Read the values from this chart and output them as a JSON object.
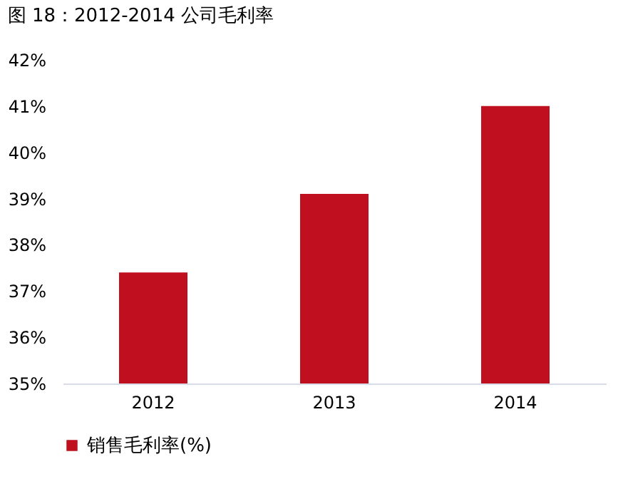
{
  "chart_data": {
    "type": "bar",
    "title": "图 18：2012-2014 公司毛利率",
    "categories": [
      "2012",
      "2013",
      "2014"
    ],
    "series": [
      {
        "name": "销售毛利率(%)",
        "color": "#c00f1e",
        "values": [
          37.4,
          39.1,
          41.0
        ]
      }
    ],
    "ylim": [
      35,
      42
    ],
    "yticks": [
      {
        "value": 35,
        "label": "35%"
      },
      {
        "value": 36,
        "label": "36%"
      },
      {
        "value": 37,
        "label": "37%"
      },
      {
        "value": 38,
        "label": "38%"
      },
      {
        "value": 39,
        "label": "39%"
      },
      {
        "value": 40,
        "label": "40%"
      },
      {
        "value": 41,
        "label": "41%"
      },
      {
        "value": 42,
        "label": "42%"
      }
    ],
    "grid": false,
    "legend": "bottom"
  }
}
